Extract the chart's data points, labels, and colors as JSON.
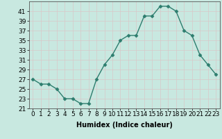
{
  "x": [
    0,
    1,
    2,
    3,
    4,
    5,
    6,
    7,
    8,
    9,
    10,
    11,
    12,
    13,
    14,
    15,
    16,
    17,
    18,
    19,
    20,
    21,
    22,
    23
  ],
  "y": [
    27,
    26,
    26,
    25,
    23,
    23,
    22,
    22,
    27,
    30,
    32,
    35,
    36,
    36,
    40,
    40,
    42,
    42,
    41,
    37,
    36,
    32,
    30,
    28
  ],
  "line_color": "#2d7d6e",
  "marker_color": "#2d7d6e",
  "bg_color": "#c8e8e0",
  "grid_color": "#d8c8c8",
  "xlabel": "Humidex (Indice chaleur)",
  "xlabel_fontsize": 7,
  "ylim": [
    21,
    43
  ],
  "yticks": [
    21,
    23,
    25,
    27,
    29,
    31,
    33,
    35,
    37,
    39,
    41
  ],
  "xticks": [
    0,
    1,
    2,
    3,
    4,
    5,
    6,
    7,
    8,
    9,
    10,
    11,
    12,
    13,
    14,
    15,
    16,
    17,
    18,
    19,
    20,
    21,
    22,
    23
  ],
  "tick_fontsize": 6.5,
  "line_width": 1.0,
  "marker_size": 2.5
}
